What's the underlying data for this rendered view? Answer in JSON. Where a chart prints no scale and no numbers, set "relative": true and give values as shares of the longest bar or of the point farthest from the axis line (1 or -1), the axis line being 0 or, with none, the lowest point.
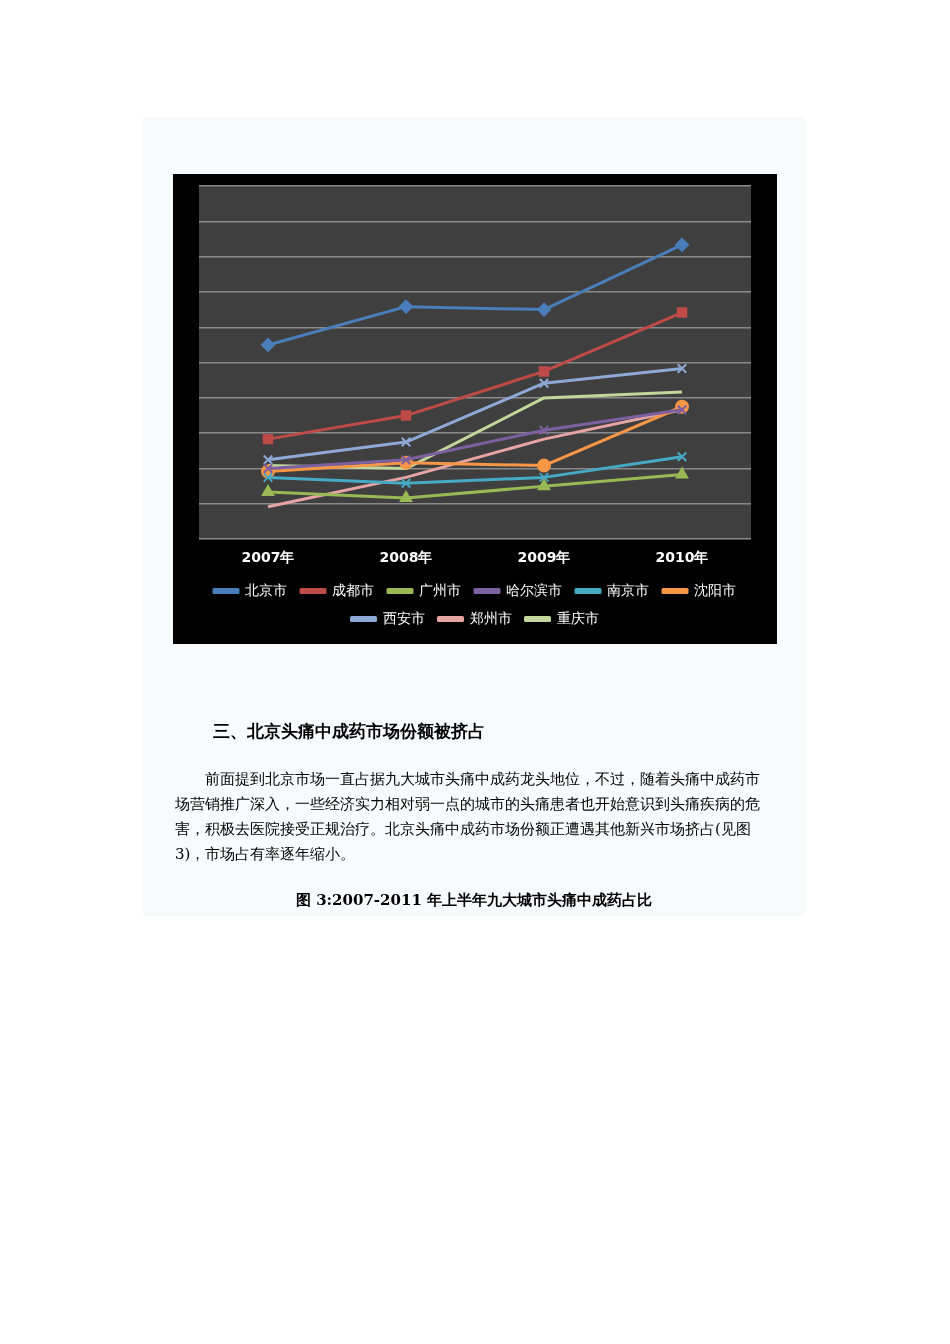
{
  "chart_data": {
    "type": "line",
    "relative": true,
    "categories": [
      "2007年",
      "2008年",
      "2009年",
      "2010年"
    ],
    "series": [
      {
        "name": "北京市",
        "color": "#4a7ebb",
        "marker": "diamond",
        "values": [
          0.66,
          0.79,
          0.78,
          1
        ]
      },
      {
        "name": "成都市",
        "color": "#be4b48",
        "marker": "square",
        "values": [
          0.34,
          0.42,
          0.57,
          0.77
        ]
      },
      {
        "name": "广州市",
        "color": "#98b954",
        "marker": "triangle",
        "values": [
          0.16,
          0.14,
          0.18,
          0.22
        ]
      },
      {
        "name": "哈尔滨市",
        "color": "#7d60a0",
        "marker": "cross",
        "values": [
          0.24,
          0.27,
          0.37,
          0.44
        ]
      },
      {
        "name": "南京市",
        "color": "#46aac5",
        "marker": "cross",
        "values": [
          0.21,
          0.19,
          0.21,
          0.28
        ]
      },
      {
        "name": "沈阳市",
        "color": "#f79646",
        "marker": "circle",
        "values": [
          0.23,
          0.26,
          0.25,
          0.45
        ]
      },
      {
        "name": "西安市",
        "color": "#8fa9d6",
        "marker": "cross",
        "values": [
          0.27,
          0.33,
          0.53,
          0.58
        ]
      },
      {
        "name": "郑州市",
        "color": "#e6a5a3",
        "marker": "none",
        "values": [
          0.11,
          0.21,
          0.34,
          0.44
        ]
      },
      {
        "name": "重庆市",
        "color": "#c3d69b",
        "marker": "none",
        "values": [
          0.25,
          0.24,
          0.48,
          0.5
        ]
      }
    ],
    "grid": "y",
    "legend": "bottom",
    "annotations": [
      "三、北京头痛中成药市场份额被挤占",
      "前面提到北京市场一直占据九大城市头痛中成药龙头地位，不过，随着头痛中成药市场营销推广深入，一些经济实力相对弱一点的城市的头痛患者也开始意识到头痛疾病的危害，积极去医院接受正规治疗。北京头痛中成药市场份额正遭遇其他新兴市场挤占(见图3)，市场占有率逐年缩小。",
      "图 3:2007-2011 年上半年九大城市头痛中成药占比"
    ]
  }
}
